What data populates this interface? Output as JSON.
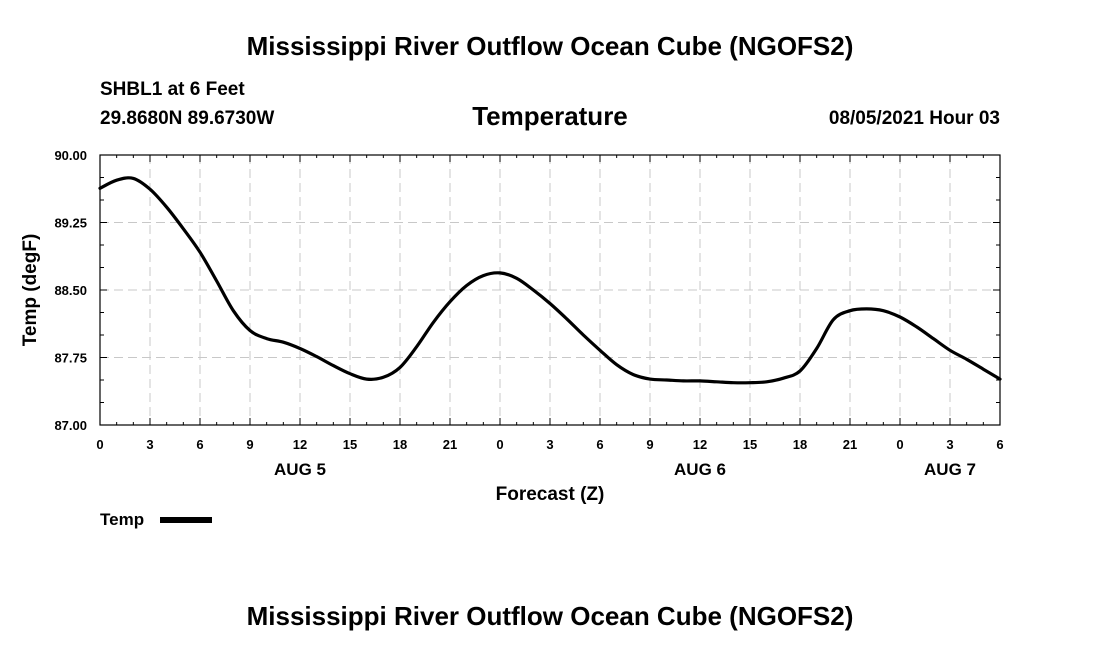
{
  "chart_data": {
    "type": "line",
    "title": "Mississippi River Outflow Ocean Cube (NGOFS2)",
    "footer_title": "Mississippi River Outflow Ocean Cube (NGOFS2)",
    "station": "SHBL1 at 6 Feet",
    "location": "29.8680N  89.6730W",
    "variable": "Temperature",
    "issued": "08/05/2021 Hour 03",
    "xlabel": "Forecast (Z)",
    "ylabel": "Temp (degF)",
    "ylim": [
      87.0,
      90.0
    ],
    "xlim": [
      0,
      54
    ],
    "yticks": [
      {
        "value": 87.0,
        "label": "87.00"
      },
      {
        "value": 87.75,
        "label": "87.75"
      },
      {
        "value": 88.5,
        "label": "88.50"
      },
      {
        "value": 89.25,
        "label": "89.25"
      },
      {
        "value": 90.0,
        "label": "90.00"
      }
    ],
    "xticks": [
      {
        "value": 0,
        "label": "0"
      },
      {
        "value": 3,
        "label": "3"
      },
      {
        "value": 6,
        "label": "6"
      },
      {
        "value": 9,
        "label": "9"
      },
      {
        "value": 12,
        "label": "12"
      },
      {
        "value": 15,
        "label": "15"
      },
      {
        "value": 18,
        "label": "18"
      },
      {
        "value": 21,
        "label": "21"
      },
      {
        "value": 24,
        "label": "0"
      },
      {
        "value": 27,
        "label": "3"
      },
      {
        "value": 30,
        "label": "6"
      },
      {
        "value": 33,
        "label": "9"
      },
      {
        "value": 36,
        "label": "12"
      },
      {
        "value": 39,
        "label": "15"
      },
      {
        "value": 42,
        "label": "18"
      },
      {
        "value": 45,
        "label": "21"
      },
      {
        "value": 48,
        "label": "0"
      },
      {
        "value": 51,
        "label": "3"
      },
      {
        "value": 54,
        "label": "6"
      }
    ],
    "day_labels": [
      {
        "value": 12,
        "label": "AUG 5"
      },
      {
        "value": 36,
        "label": "AUG 6"
      },
      {
        "value": 51,
        "label": "AUG 7"
      }
    ],
    "grid": true,
    "legend": {
      "position": "bottom-left",
      "entries": [
        "Temp"
      ]
    },
    "series": [
      {
        "name": "Temp",
        "x": [
          0,
          1,
          2,
          3,
          4,
          5,
          6,
          7,
          8,
          9,
          10,
          11,
          12,
          13,
          14,
          15,
          16,
          17,
          18,
          19,
          20,
          21,
          22,
          23,
          24,
          25,
          26,
          27,
          28,
          29,
          30,
          31,
          32,
          33,
          34,
          35,
          36,
          37,
          38,
          39,
          40,
          41,
          42,
          43,
          44,
          45,
          46,
          47,
          48,
          49,
          50,
          51,
          52,
          53,
          54
        ],
        "values": [
          89.63,
          89.72,
          89.74,
          89.62,
          89.42,
          89.18,
          88.92,
          88.6,
          88.27,
          88.05,
          87.96,
          87.92,
          87.85,
          87.76,
          87.66,
          87.57,
          87.51,
          87.53,
          87.64,
          87.87,
          88.14,
          88.37,
          88.55,
          88.66,
          88.69,
          88.63,
          88.5,
          88.35,
          88.18,
          88.0,
          87.83,
          87.67,
          87.56,
          87.51,
          87.5,
          87.49,
          87.49,
          87.48,
          87.47,
          87.47,
          87.48,
          87.52,
          87.6,
          87.85,
          88.17,
          88.27,
          88.29,
          88.27,
          88.2,
          88.09,
          87.96,
          87.83,
          87.73,
          87.62,
          87.51
        ]
      }
    ]
  }
}
